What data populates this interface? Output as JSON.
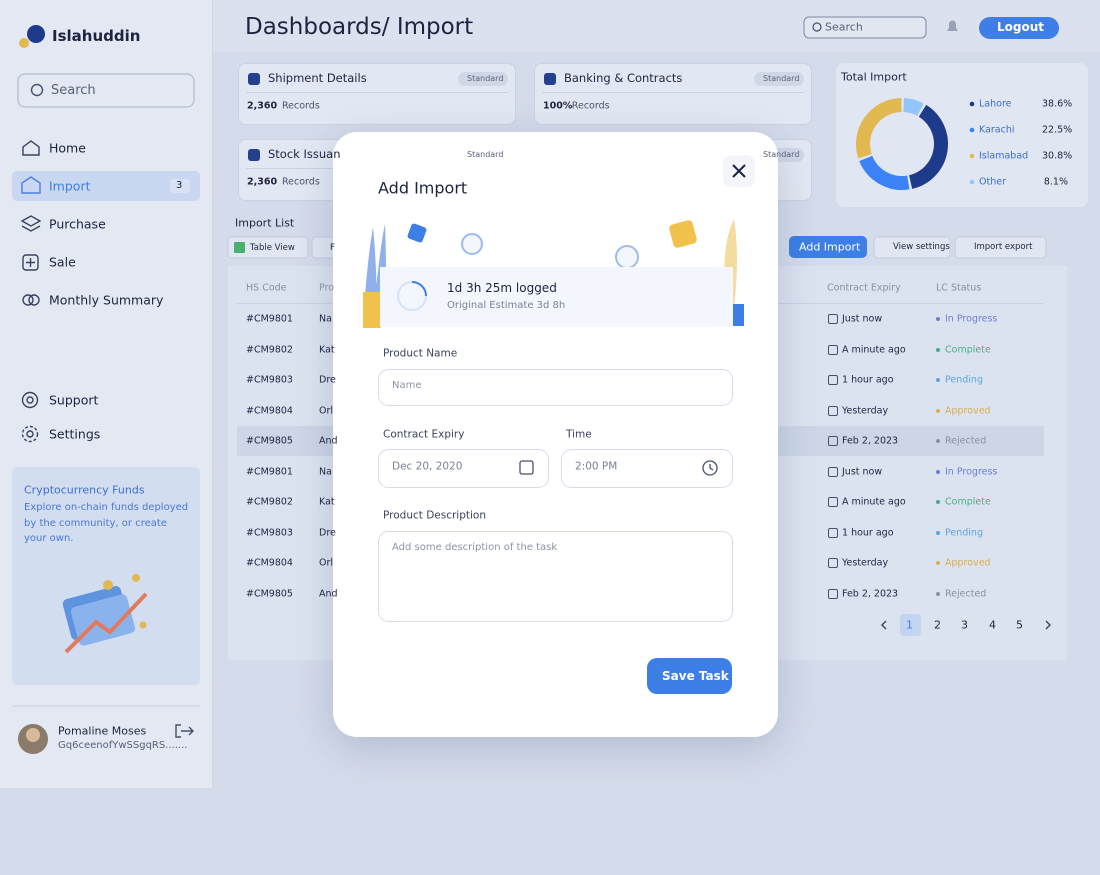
{
  "sidebar": {
    "brand": "Islahuddin",
    "search": "Search",
    "nav": [
      {
        "label": "Home"
      },
      {
        "label": "Import",
        "badge": "3"
      },
      {
        "label": "Purchase"
      },
      {
        "label": "Sale"
      },
      {
        "label": "Monthly Summary"
      }
    ],
    "bottom_nav": [
      "Support",
      "Settings"
    ],
    "promo": {
      "title": "Cryptocurrency Funds",
      "text": "Explore on-chain funds deployed by the community, or create your own."
    },
    "user": {
      "name": "Pomaline Moses",
      "id": "Gq6ceenofYwSSgqRS......."
    }
  },
  "header": {
    "title": "Dashboards/ Import",
    "search": "Search",
    "logout": "Logout"
  },
  "cards": [
    {
      "title": "Shipment Details",
      "tag": "Standard",
      "count": "2,360",
      "unit": "Records"
    },
    {
      "title": "Banking & Contracts",
      "tag": "Standard",
      "count": "100%",
      "unit": "Records"
    },
    {
      "title": "Stock Issuan",
      "tag": "Standard",
      "count": "2,360",
      "unit": "Records"
    },
    {
      "tag": "Standard"
    }
  ],
  "total_import": {
    "title": "Total Import",
    "categories": [
      "Lahore",
      "Karachi",
      "Islamabad",
      "Other"
    ],
    "values": [
      38.6,
      22.5,
      30.8,
      8.1
    ],
    "value_labels": [
      "38.6%",
      "22.5%",
      "30.8%",
      "8.1%"
    ],
    "colors": [
      "#1e3a8a",
      "#3b82f6",
      "#e2b850",
      "#93c5fd"
    ]
  },
  "toolbar": {
    "title": "Import List",
    "view": "Table View",
    "filter": "F",
    "add": "Add Import",
    "settings": "View settings",
    "export": "Import export"
  },
  "table": {
    "columns": [
      "HS Code",
      "Pro",
      "Contract Expiry",
      "LC Status"
    ],
    "rows": [
      {
        "code": "#CM9801",
        "name": "Na",
        "expiry": "Just now",
        "status": "In Progress",
        "color": "#6b7fd6"
      },
      {
        "code": "#CM9802",
        "name": "Kat",
        "expiry": "A minute ago",
        "status": "Complete",
        "color": "#45b087"
      },
      {
        "code": "#CM9803",
        "name": "Dre",
        "expiry": "1 hour ago",
        "status": "Pending",
        "color": "#5aa5df"
      },
      {
        "code": "#CM9804",
        "name": "Orl",
        "expiry": "Yesterday",
        "status": "Approved",
        "color": "#dcae4e"
      },
      {
        "code": "#CM9805",
        "name": "And",
        "expiry": "Feb 2, 2023",
        "status": "Rejected",
        "color": "#8890a3"
      },
      {
        "code": "#CM9801",
        "name": "Na",
        "expiry": "Just now",
        "status": "In Progress",
        "color": "#6b7fd6"
      },
      {
        "code": "#CM9802",
        "name": "Kat",
        "expiry": "A minute ago",
        "status": "Complete",
        "color": "#45b087"
      },
      {
        "code": "#CM9803",
        "name": "Dre",
        "expiry": "1 hour ago",
        "status": "Pending",
        "color": "#5aa5df"
      },
      {
        "code": "#CM9804",
        "name": "Orl",
        "expiry": "Yesterday",
        "status": "Approved",
        "color": "#dcae4e"
      },
      {
        "code": "#CM9805",
        "name": "And",
        "expiry": "Feb 2, 2023",
        "status": "Rejected",
        "color": "#8890a3"
      }
    ],
    "pages": [
      "1",
      "2",
      "3",
      "4",
      "5"
    ]
  },
  "modal": {
    "title": "Add Import",
    "logged": "1d 3h 25m logged",
    "estimate": "Original Estimate 3d 8h",
    "product_label": "Product Name",
    "product_placeholder": "Name",
    "expiry_label": "Contract Expiry",
    "expiry_value": "Dec 20, 2020",
    "time_label": "Time",
    "time_value": "2:00 PM",
    "description_label": "Product Description",
    "description_placeholder": "Add some description of the task",
    "save": "Save Task"
  }
}
